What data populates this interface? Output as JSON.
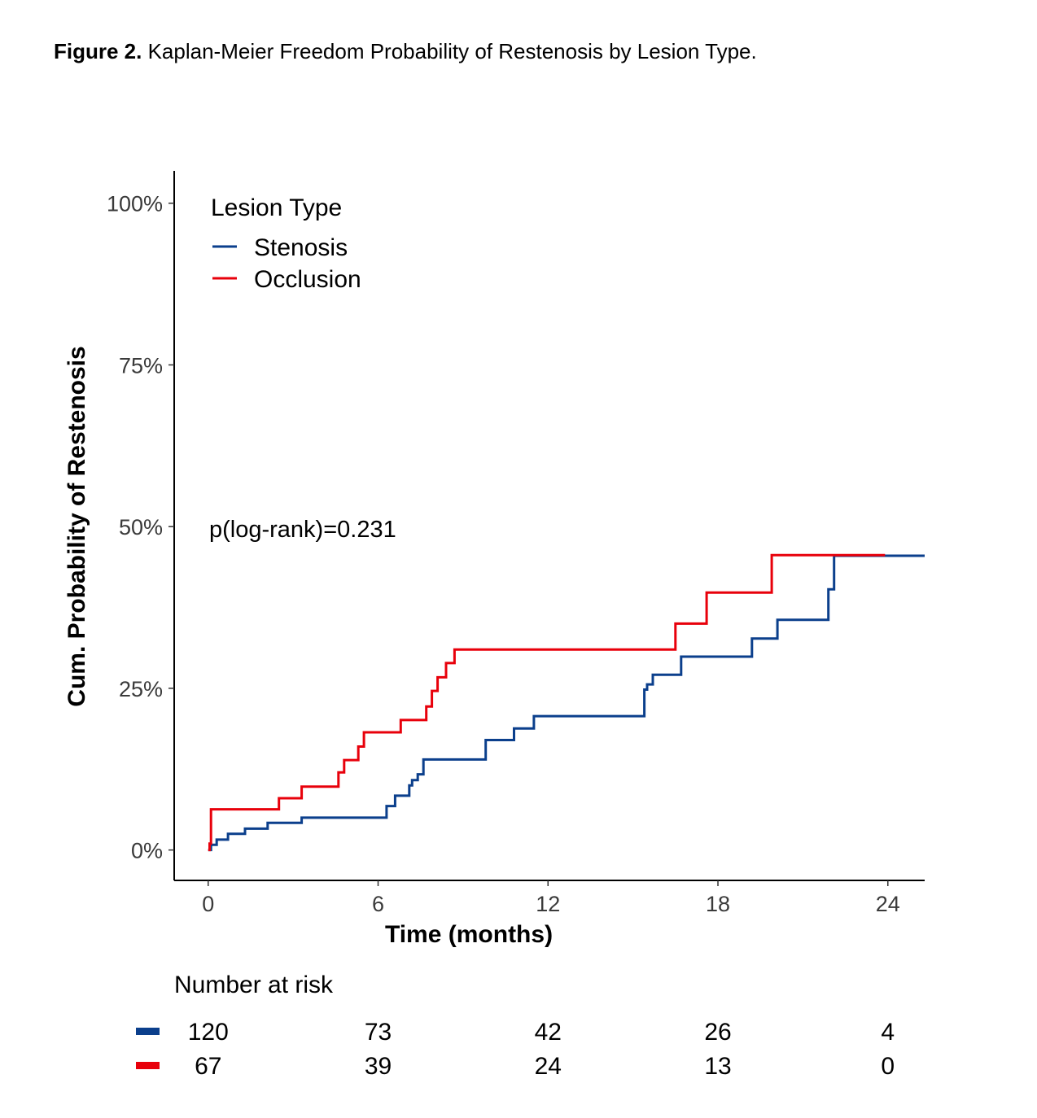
{
  "figure": {
    "label": "Figure 2.",
    "caption": "Kaplan-Meier Freedom Probability of Restenosis by Lesion Type."
  },
  "chart_data": {
    "type": "line",
    "step": true,
    "xlabel": "Time (months)",
    "ylabel": "Cum. Probability of Restenosis",
    "xlim": [
      -1.2,
      25.3
    ],
    "ylim": [
      -0.047,
      1.05
    ],
    "x_ticks": [
      0,
      6,
      12,
      18,
      24
    ],
    "x_tick_labels": [
      "0",
      "6",
      "12",
      "18",
      "24"
    ],
    "y_ticks": [
      0,
      0.25,
      0.5,
      0.75,
      1.0
    ],
    "y_tick_labels": [
      "0%",
      "25%",
      "50%",
      "75%",
      "100%"
    ],
    "grid": false,
    "legend": {
      "title": "Lesion Type",
      "placement": "top-left",
      "entries": [
        "Stenosis",
        "Occlusion"
      ]
    },
    "annotation": "p(log-rank)=0.231",
    "series": [
      {
        "name": "Stenosis",
        "color": "#0b3f8c",
        "x": [
          0,
          0.1,
          0.3,
          0.7,
          1.3,
          2.1,
          3.3,
          6.3,
          6.6,
          7.1,
          7.2,
          7.4,
          7.6,
          9.8,
          10.8,
          11.5,
          15.4,
          15.5,
          15.7,
          16.7,
          19.2,
          20.1,
          21.9,
          22.1,
          25.3
        ],
        "y": [
          0,
          0.008,
          0.016,
          0.025,
          0.033,
          0.042,
          0.05,
          0.068,
          0.084,
          0.1,
          0.108,
          0.117,
          0.14,
          0.17,
          0.188,
          0.207,
          0.248,
          0.256,
          0.271,
          0.299,
          0.327,
          0.356,
          0.403,
          0.455,
          0.455
        ]
      },
      {
        "name": "Occlusion",
        "color": "#e8000b",
        "x": [
          0,
          0.05,
          0.1,
          2.5,
          3.3,
          4.6,
          4.8,
          5.3,
          5.5,
          6.8,
          7.7,
          7.9,
          8.1,
          8.4,
          8.7,
          16.5,
          17.6,
          19.9,
          23.9
        ],
        "y": [
          0,
          0.01,
          0.063,
          0.08,
          0.098,
          0.12,
          0.139,
          0.16,
          0.182,
          0.201,
          0.222,
          0.246,
          0.267,
          0.289,
          0.31,
          0.35,
          0.398,
          0.456,
          0.456
        ]
      }
    ]
  },
  "risk_table": {
    "title": "Number at risk",
    "times": [
      0,
      6,
      12,
      18,
      24
    ],
    "rows": [
      {
        "color": "#0b3f8c",
        "values": [
          "120",
          "73",
          "42",
          "26",
          "4"
        ]
      },
      {
        "color": "#e8000b",
        "values": [
          "67",
          "39",
          "24",
          "13",
          "0"
        ]
      }
    ]
  }
}
